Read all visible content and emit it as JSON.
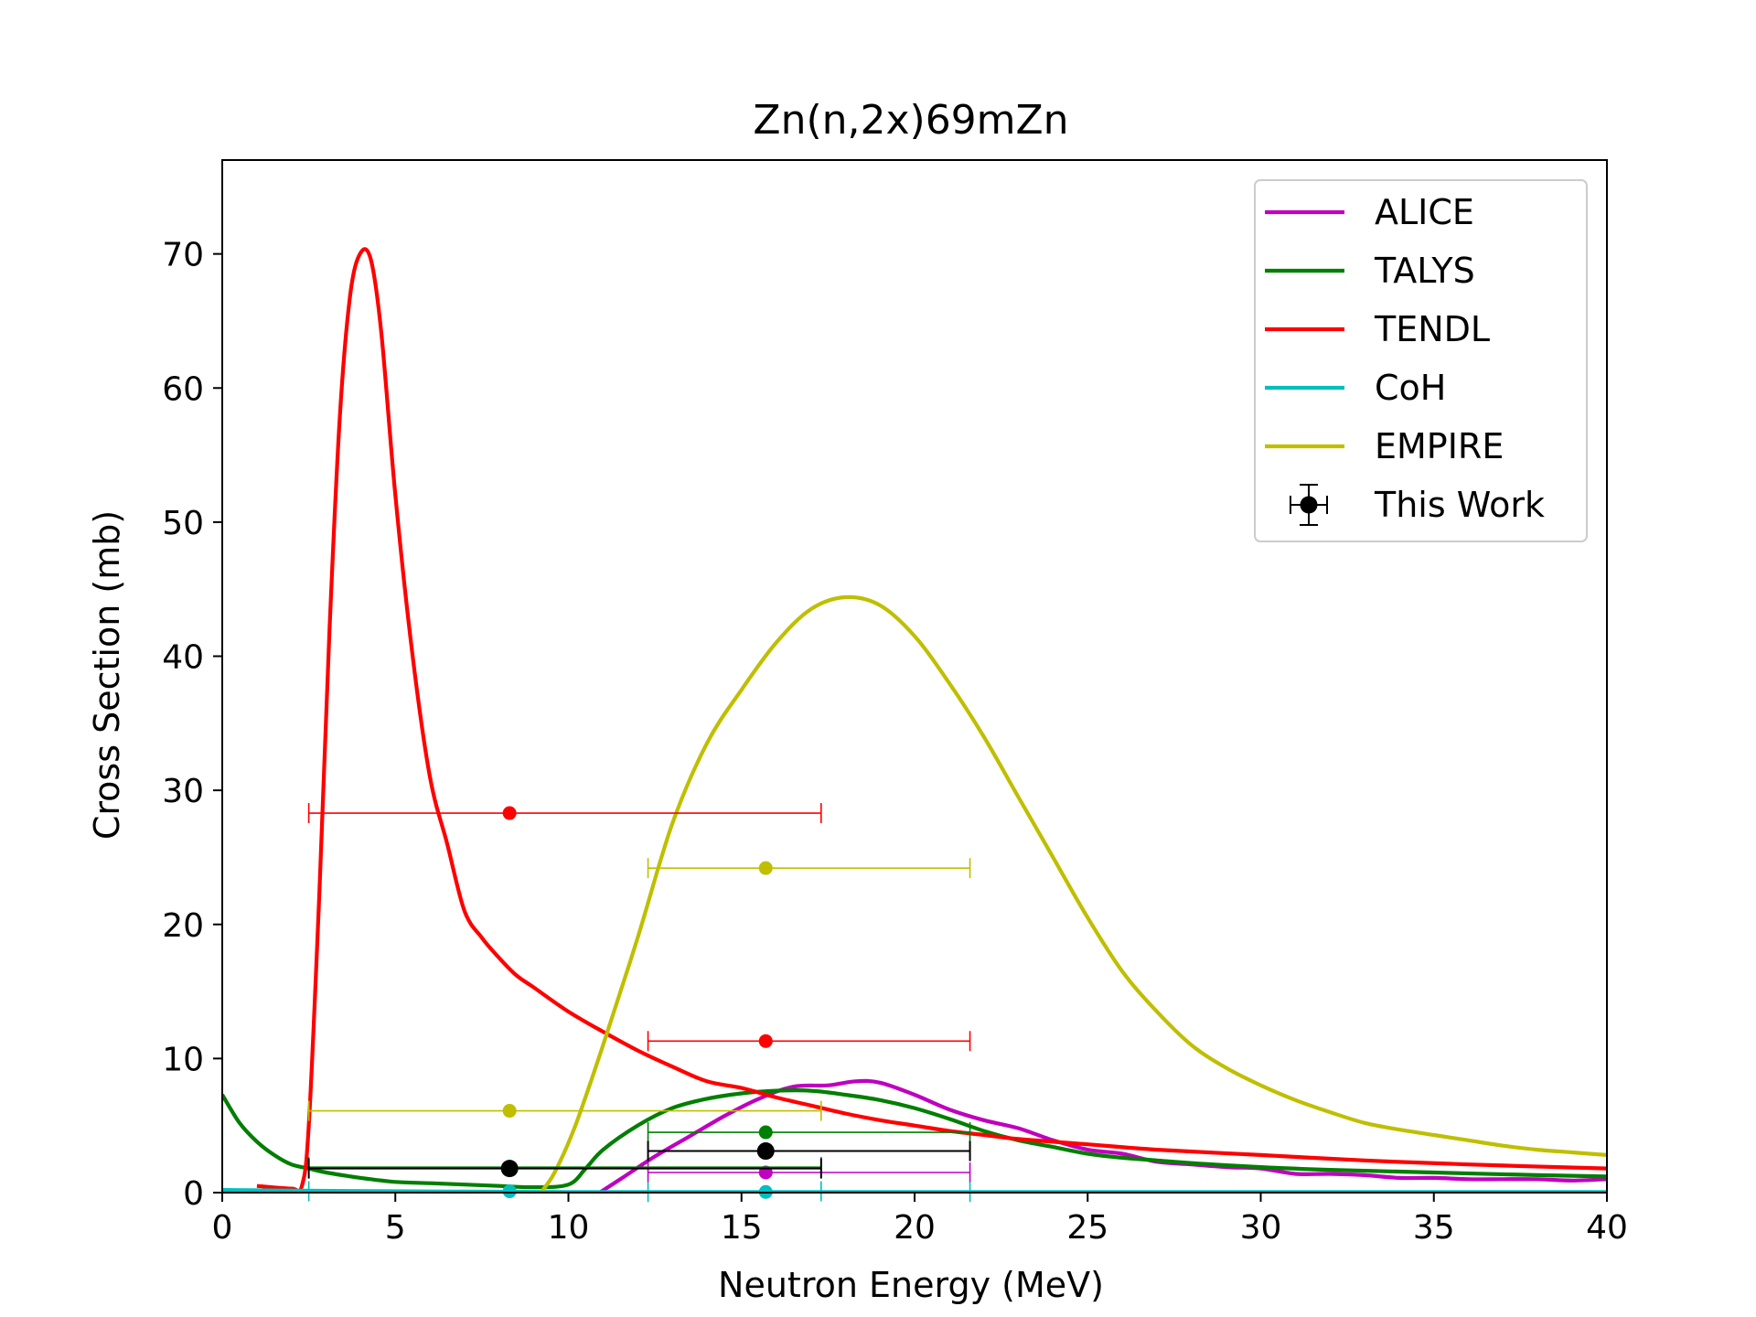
{
  "chart_data": {
    "type": "line",
    "title": "Zn(n,2x)69mZn",
    "xlabel": "Neutron Energy (MeV)",
    "ylabel": "Cross Section (mb)",
    "xlim": [
      0,
      40
    ],
    "ylim": [
      0,
      77
    ],
    "xticks": [
      0,
      5,
      10,
      15,
      20,
      25,
      30,
      35,
      40
    ],
    "yticks": [
      0,
      10,
      20,
      30,
      40,
      50,
      60,
      70
    ],
    "grid": false,
    "legend_position": "top-right",
    "series": [
      {
        "name": "ALICE",
        "color": "#bf00bf",
        "points": [
          [
            10.9,
            0
          ],
          [
            11.5,
            1
          ],
          [
            12.5,
            2.7
          ],
          [
            13.5,
            4.2
          ],
          [
            14.5,
            5.7
          ],
          [
            15.5,
            7.0
          ],
          [
            16.5,
            7.9
          ],
          [
            17.5,
            8.0
          ],
          [
            18.3,
            8.3
          ],
          [
            19,
            8.2
          ],
          [
            20,
            7.3
          ],
          [
            21,
            6.2
          ],
          [
            22,
            5.4
          ],
          [
            23,
            4.8
          ],
          [
            24,
            3.9
          ],
          [
            25,
            3.2
          ],
          [
            26,
            2.9
          ],
          [
            27,
            2.3
          ],
          [
            28,
            2.1
          ],
          [
            29,
            1.9
          ],
          [
            30,
            1.8
          ],
          [
            31,
            1.4
          ],
          [
            32,
            1.4
          ],
          [
            33,
            1.3
          ],
          [
            34,
            1.1
          ],
          [
            35,
            1.1
          ],
          [
            36,
            1.0
          ],
          [
            37,
            1.0
          ],
          [
            38,
            1.0
          ],
          [
            39,
            0.9
          ],
          [
            40,
            1.0
          ]
        ],
        "error_points": [
          {
            "x": 15.7,
            "y": 1.5,
            "xerr": [
              3.4,
              5.9
            ]
          }
        ]
      },
      {
        "name": "TALYS",
        "color": "#007f00",
        "points": [
          [
            0,
            7.3
          ],
          [
            0.5,
            5.2
          ],
          [
            1,
            3.8
          ],
          [
            1.5,
            2.8
          ],
          [
            2,
            2.1
          ],
          [
            2.5,
            1.8
          ],
          [
            3,
            1.5
          ],
          [
            4,
            1.1
          ],
          [
            5,
            0.8
          ],
          [
            6,
            0.7
          ],
          [
            7,
            0.6
          ],
          [
            8,
            0.5
          ],
          [
            9,
            0.4
          ],
          [
            10,
            0.6
          ],
          [
            10.5,
            1.8
          ],
          [
            11,
            3.2
          ],
          [
            12,
            5.0
          ],
          [
            13,
            6.3
          ],
          [
            14,
            7.0
          ],
          [
            15,
            7.4
          ],
          [
            16,
            7.6
          ],
          [
            17,
            7.6
          ],
          [
            18,
            7.3
          ],
          [
            19,
            6.9
          ],
          [
            20,
            6.3
          ],
          [
            21,
            5.5
          ],
          [
            22,
            4.6
          ],
          [
            23,
            3.9
          ],
          [
            24,
            3.4
          ],
          [
            25,
            2.9
          ],
          [
            26,
            2.6
          ],
          [
            27,
            2.4
          ],
          [
            28,
            2.2
          ],
          [
            30,
            1.9
          ],
          [
            32,
            1.7
          ],
          [
            35,
            1.5
          ],
          [
            38,
            1.3
          ],
          [
            40,
            1.2
          ]
        ],
        "error_points": [
          {
            "x": 8.3,
            "y": 1.9,
            "xerr": [
              5.8,
              9.0
            ]
          },
          {
            "x": 15.7,
            "y": 4.5,
            "xerr": [
              3.4,
              5.9
            ]
          }
        ]
      },
      {
        "name": "TENDL",
        "color": "#ff0000",
        "points": [
          [
            1,
            0.5
          ],
          [
            2,
            0.3
          ],
          [
            2.3,
            0.5
          ],
          [
            2.5,
            5
          ],
          [
            2.8,
            22
          ],
          [
            3.1,
            42
          ],
          [
            3.4,
            58
          ],
          [
            3.7,
            67
          ],
          [
            4,
            70.1
          ],
          [
            4.3,
            69.5
          ],
          [
            4.6,
            64
          ],
          [
            5,
            52
          ],
          [
            5.5,
            40
          ],
          [
            6,
            31
          ],
          [
            6.5,
            26
          ],
          [
            7,
            21
          ],
          [
            7.5,
            19
          ],
          [
            8,
            17.5
          ],
          [
            8.5,
            16.2
          ],
          [
            9,
            15.3
          ],
          [
            10,
            13.5
          ],
          [
            11,
            12
          ],
          [
            12,
            10.6
          ],
          [
            13,
            9.4
          ],
          [
            14,
            8.3
          ],
          [
            15,
            7.8
          ],
          [
            16,
            7.1
          ],
          [
            17,
            6.5
          ],
          [
            18,
            5.9
          ],
          [
            19,
            5.4
          ],
          [
            20,
            5.0
          ],
          [
            21,
            4.6
          ],
          [
            22,
            4.3
          ],
          [
            23,
            4.0
          ],
          [
            25,
            3.6
          ],
          [
            27,
            3.2
          ],
          [
            30,
            2.8
          ],
          [
            33,
            2.4
          ],
          [
            36,
            2.1
          ],
          [
            40,
            1.8
          ]
        ],
        "error_points": [
          {
            "x": 8.3,
            "y": 28.3,
            "xerr": [
              5.8,
              9.0
            ]
          },
          {
            "x": 15.7,
            "y": 11.3,
            "xerr": [
              3.4,
              5.9
            ]
          }
        ]
      },
      {
        "name": "CoH",
        "color": "#00bfbf",
        "points": [
          [
            0,
            0.2
          ],
          [
            5,
            0.1
          ],
          [
            10,
            0.05
          ],
          [
            20,
            0.05
          ],
          [
            30,
            0.05
          ],
          [
            40,
            0.05
          ]
        ],
        "error_points": [
          {
            "x": 8.3,
            "y": 0.1,
            "xerr": [
              5.8,
              9.0
            ]
          },
          {
            "x": 15.7,
            "y": 0.05,
            "xerr": [
              3.4,
              5.9
            ]
          }
        ]
      },
      {
        "name": "EMPIRE",
        "color": "#bfbf00",
        "points": [
          [
            9.2,
            0
          ],
          [
            9.6,
            1.5
          ],
          [
            10.2,
            5
          ],
          [
            11,
            11
          ],
          [
            12,
            19
          ],
          [
            13,
            27.5
          ],
          [
            14,
            33.5
          ],
          [
            15,
            37.5
          ],
          [
            16,
            41
          ],
          [
            17,
            43.5
          ],
          [
            18,
            44.4
          ],
          [
            19,
            43.8
          ],
          [
            20,
            41.5
          ],
          [
            21,
            38
          ],
          [
            22,
            34
          ],
          [
            23,
            29.5
          ],
          [
            24,
            25
          ],
          [
            25,
            20.5
          ],
          [
            26,
            16.5
          ],
          [
            27,
            13.5
          ],
          [
            28,
            11
          ],
          [
            29,
            9.3
          ],
          [
            30,
            8
          ],
          [
            31,
            6.9
          ],
          [
            32,
            6
          ],
          [
            33,
            5.2
          ],
          [
            34,
            4.7
          ],
          [
            35,
            4.3
          ],
          [
            36,
            3.9
          ],
          [
            37,
            3.5
          ],
          [
            38,
            3.2
          ],
          [
            39,
            3.0
          ],
          [
            40,
            2.8
          ]
        ],
        "error_points": [
          {
            "x": 8.3,
            "y": 6.1,
            "xerr": [
              5.8,
              9.0
            ]
          },
          {
            "x": 15.7,
            "y": 24.2,
            "xerr": [
              3.4,
              5.9
            ]
          }
        ]
      },
      {
        "name": "This Work",
        "color": "#000000",
        "points": [],
        "error_points": [
          {
            "x": 8.3,
            "y": 1.8,
            "xerr": [
              5.8,
              9.0
            ]
          },
          {
            "x": 15.7,
            "y": 3.1,
            "xerr": [
              3.4,
              5.9
            ]
          }
        ]
      }
    ]
  }
}
